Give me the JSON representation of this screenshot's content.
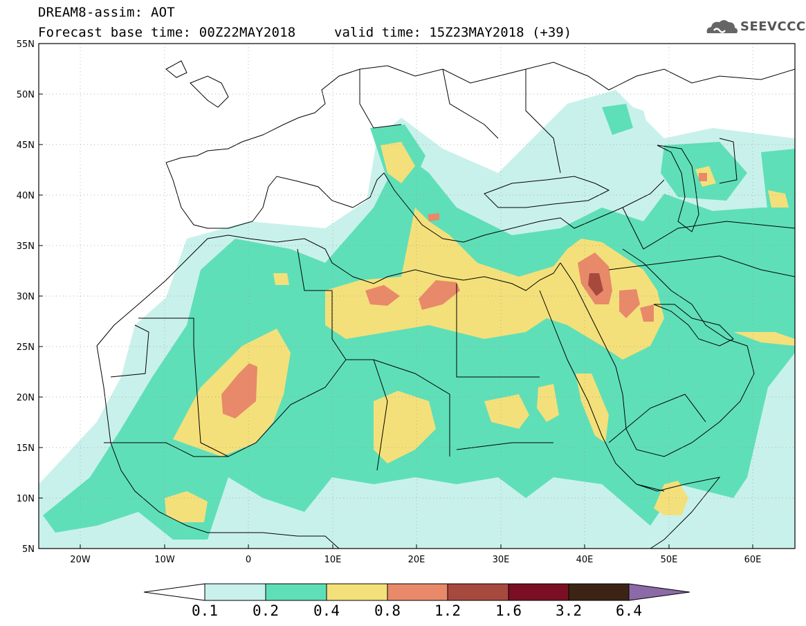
{
  "header": {
    "title_line1": "DREAM8-assim: AOT",
    "title_line2": "Forecast base time: 00Z22MAY2018",
    "valid_time": "valid time: 15Z23MAY2018 (+39)",
    "logo_text": "SEEVCCC"
  },
  "axes": {
    "lat_labels": [
      "55N",
      "50N",
      "45N",
      "40N",
      "35N",
      "30N",
      "25N",
      "20N",
      "15N",
      "10N",
      "5N"
    ],
    "lon_labels": [
      "20W",
      "10W",
      "0",
      "10E",
      "20E",
      "30E",
      "40E",
      "50E",
      "60E"
    ]
  },
  "colorbar": {
    "labels": [
      "0.1",
      "0.2",
      "0.4",
      "0.8",
      "1.2",
      "1.6",
      "3.2",
      "6.4"
    ],
    "colors": [
      "#ffffff",
      "#c9f1eb",
      "#5fdfb8",
      "#f4e07a",
      "#e8896a",
      "#a64a3e",
      "#7a0f24",
      "#3b2415",
      "#8b6aa7"
    ]
  },
  "chart_data": {
    "type": "heatmap",
    "title": "DREAM8-assim: AOT",
    "variable": "AOT",
    "forecast_base_time": "00Z22MAY2018",
    "valid_time": "15Z23MAY2018",
    "lead_hours": 39,
    "lon_range": [
      -25,
      65
    ],
    "lat_range": [
      5,
      55
    ],
    "levels": [
      0.1,
      0.2,
      0.4,
      0.8,
      1.2,
      1.6,
      3.2,
      6.4
    ],
    "colors": [
      "#c9f1eb",
      "#5fdfb8",
      "#f4e07a",
      "#e8896a",
      "#a64a3e",
      "#7a0f24",
      "#3b2415"
    ]
  }
}
